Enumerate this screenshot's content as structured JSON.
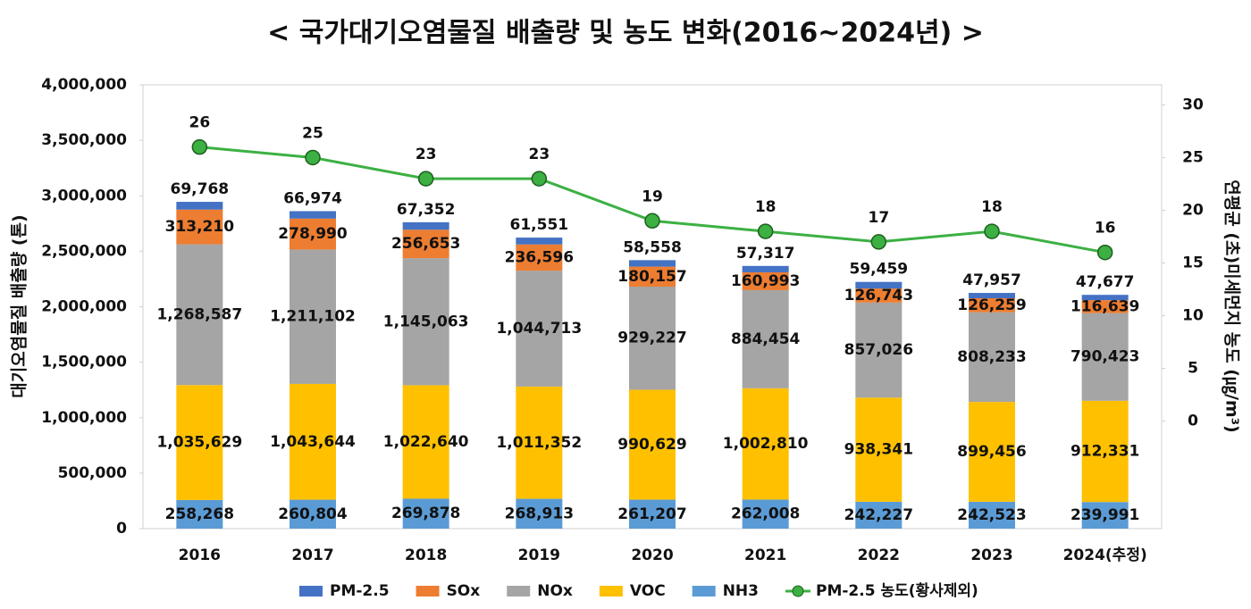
{
  "chart_data": {
    "type": "bar",
    "title": "< 국가대기오염물질 배출량 및 농도 변화(2016~2024년) >",
    "ylabel": "대기오염물질 배출량 (톤)",
    "y2label": "연평균 (초)미세먼지 농도 (㎍/m³)",
    "stacked": true,
    "categories": [
      "2016",
      "2017",
      "2018",
      "2019",
      "2020",
      "2021",
      "2022",
      "2023",
      "2024(추정)"
    ],
    "ylim": [
      0,
      4000000
    ],
    "yticks": [
      {
        "value": 0,
        "label": "0"
      },
      {
        "value": 500000,
        "label": "500,000"
      },
      {
        "value": 1000000,
        "label": "1,000,000"
      },
      {
        "value": 1500000,
        "label": "1,500,000"
      },
      {
        "value": 2000000,
        "label": "2,000,000"
      },
      {
        "value": 2500000,
        "label": "2,500,000"
      },
      {
        "value": 3000000,
        "label": "3,000,000"
      },
      {
        "value": 3500000,
        "label": "3,500,000"
      },
      {
        "value": 4000000,
        "label": "4,000,000"
      }
    ],
    "y2lim": [
      -10.2,
      31.9
    ],
    "y2ticks": [
      0,
      5,
      10,
      15,
      20,
      25,
      30
    ],
    "grid": false,
    "legend": "bottom",
    "series": [
      {
        "name": "PM-2.5",
        "color": "#4472c4",
        "values": [
          69768,
          66974,
          67352,
          61551,
          58558,
          57317,
          59459,
          47957,
          47677
        ],
        "value_labels": [
          "69,768",
          "66,974",
          "67,352",
          "61,551",
          "58,558",
          "57,317",
          "59,459",
          "47,957",
          "47,677"
        ]
      },
      {
        "name": "SOx",
        "color": "#ed7d31",
        "values": [
          313210,
          278990,
          256653,
          236596,
          180157,
          160993,
          126743,
          126259,
          116639
        ],
        "value_labels": [
          "313,210",
          "278,990",
          "256,653",
          "236,596",
          "180,157",
          "160,993",
          "126,743",
          "126,259",
          "116,639"
        ]
      },
      {
        "name": "NOx",
        "color": "#a5a5a5",
        "values": [
          1268587,
          1211102,
          1145063,
          1044713,
          929227,
          884454,
          857026,
          808233,
          790423
        ],
        "value_labels": [
          "1,268,587",
          "1,211,102",
          "1,145,063",
          "1,044,713",
          "929,227",
          "884,454",
          "857,026",
          "808,233",
          "790,423"
        ]
      },
      {
        "name": "VOC",
        "color": "#ffc000",
        "values": [
          1035629,
          1043644,
          1022640,
          1011352,
          990629,
          1002810,
          938341,
          899456,
          912331
        ],
        "value_labels": [
          "1,035,629",
          "1,043,644",
          "1,022,640",
          "1,011,352",
          "990,629",
          "1,002,810",
          "938,341",
          "899,456",
          "912,331"
        ]
      },
      {
        "name": "NH3",
        "color": "#5b9bd5",
        "values": [
          258268,
          260804,
          269878,
          268913,
          261207,
          262008,
          242227,
          242523,
          239991
        ],
        "value_labels": [
          "258,268",
          "260,804",
          "269,878",
          "268,913",
          "261,207",
          "262,008",
          "242,227",
          "242,523",
          "239,991"
        ]
      },
      {
        "name": "PM-2.5 농도(황사제외)",
        "type": "line",
        "axis": "y2",
        "color": "#3cb043",
        "values": [
          26,
          25,
          23,
          23,
          19,
          18,
          17,
          18,
          16
        ]
      }
    ]
  }
}
